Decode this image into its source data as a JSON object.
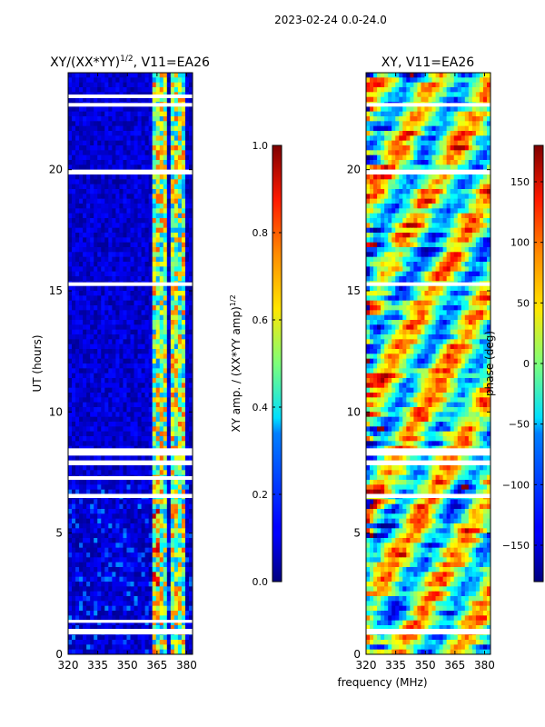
{
  "suptitle": "2023-02-24 0.0-24.0",
  "xlabel_shared": "frequency (MHz)",
  "chart_data": [
    {
      "type": "heatmap",
      "id": "amp",
      "title_main": "XY/(XX*YY)",
      "title_sup": "1/2",
      "title_tail": ", V11=EA26",
      "ylabel": "UT (hours)",
      "xlim": [
        320,
        383
      ],
      "ylim": [
        0,
        24
      ],
      "xticks": [
        320,
        335,
        350,
        365,
        380
      ],
      "yticks": [
        0,
        5,
        10,
        15,
        20
      ],
      "colorbar": {
        "label_main": "XY amp. / (XX*YY amp)",
        "label_sup": "1/2",
        "range": [
          0.0,
          1.0
        ],
        "ticks": [
          "0.0",
          "0.2",
          "0.4",
          "0.6",
          "0.8",
          "1.0"
        ],
        "colormap": "jet"
      },
      "gaps_hours": [
        [
          0.82,
          1.05
        ],
        [
          1.3,
          1.42
        ],
        [
          6.45,
          6.62
        ],
        [
          7.2,
          7.35
        ],
        [
          7.8,
          8.0
        ],
        [
          8.2,
          8.5
        ],
        [
          15.2,
          15.35
        ],
        [
          19.8,
          20.0
        ],
        [
          22.6,
          22.75
        ],
        [
          22.95,
          23.1
        ]
      ],
      "notes": "Low amplitude (~0.0-0.1) across 320-362 MHz; elevated amplitude (~0.3-0.9) in channels near 362-370 and 372-378 MHz"
    },
    {
      "type": "heatmap",
      "id": "phase",
      "title": "XY, V11=EA26",
      "xlim": [
        320,
        383
      ],
      "ylim": [
        0,
        24
      ],
      "xticks": [
        320,
        335,
        350,
        365,
        380
      ],
      "yticks": [
        0,
        5,
        10,
        15,
        20
      ],
      "colorbar": {
        "label": "phase (deg)",
        "range": [
          -180,
          180
        ],
        "ticks": [
          "−150",
          "−100",
          "−50",
          "0",
          "50",
          "100",
          "150"
        ],
        "colormap": "jet"
      },
      "gaps_hours": [
        [
          0.82,
          1.05
        ],
        [
          6.45,
          6.62
        ],
        [
          7.8,
          8.0
        ],
        [
          8.2,
          8.5
        ],
        [
          15.2,
          15.35
        ],
        [
          19.8,
          20.0
        ],
        [
          22.6,
          22.75
        ]
      ],
      "notes": "Phase varies across full range -180 to 180 deg with banded structure"
    }
  ]
}
